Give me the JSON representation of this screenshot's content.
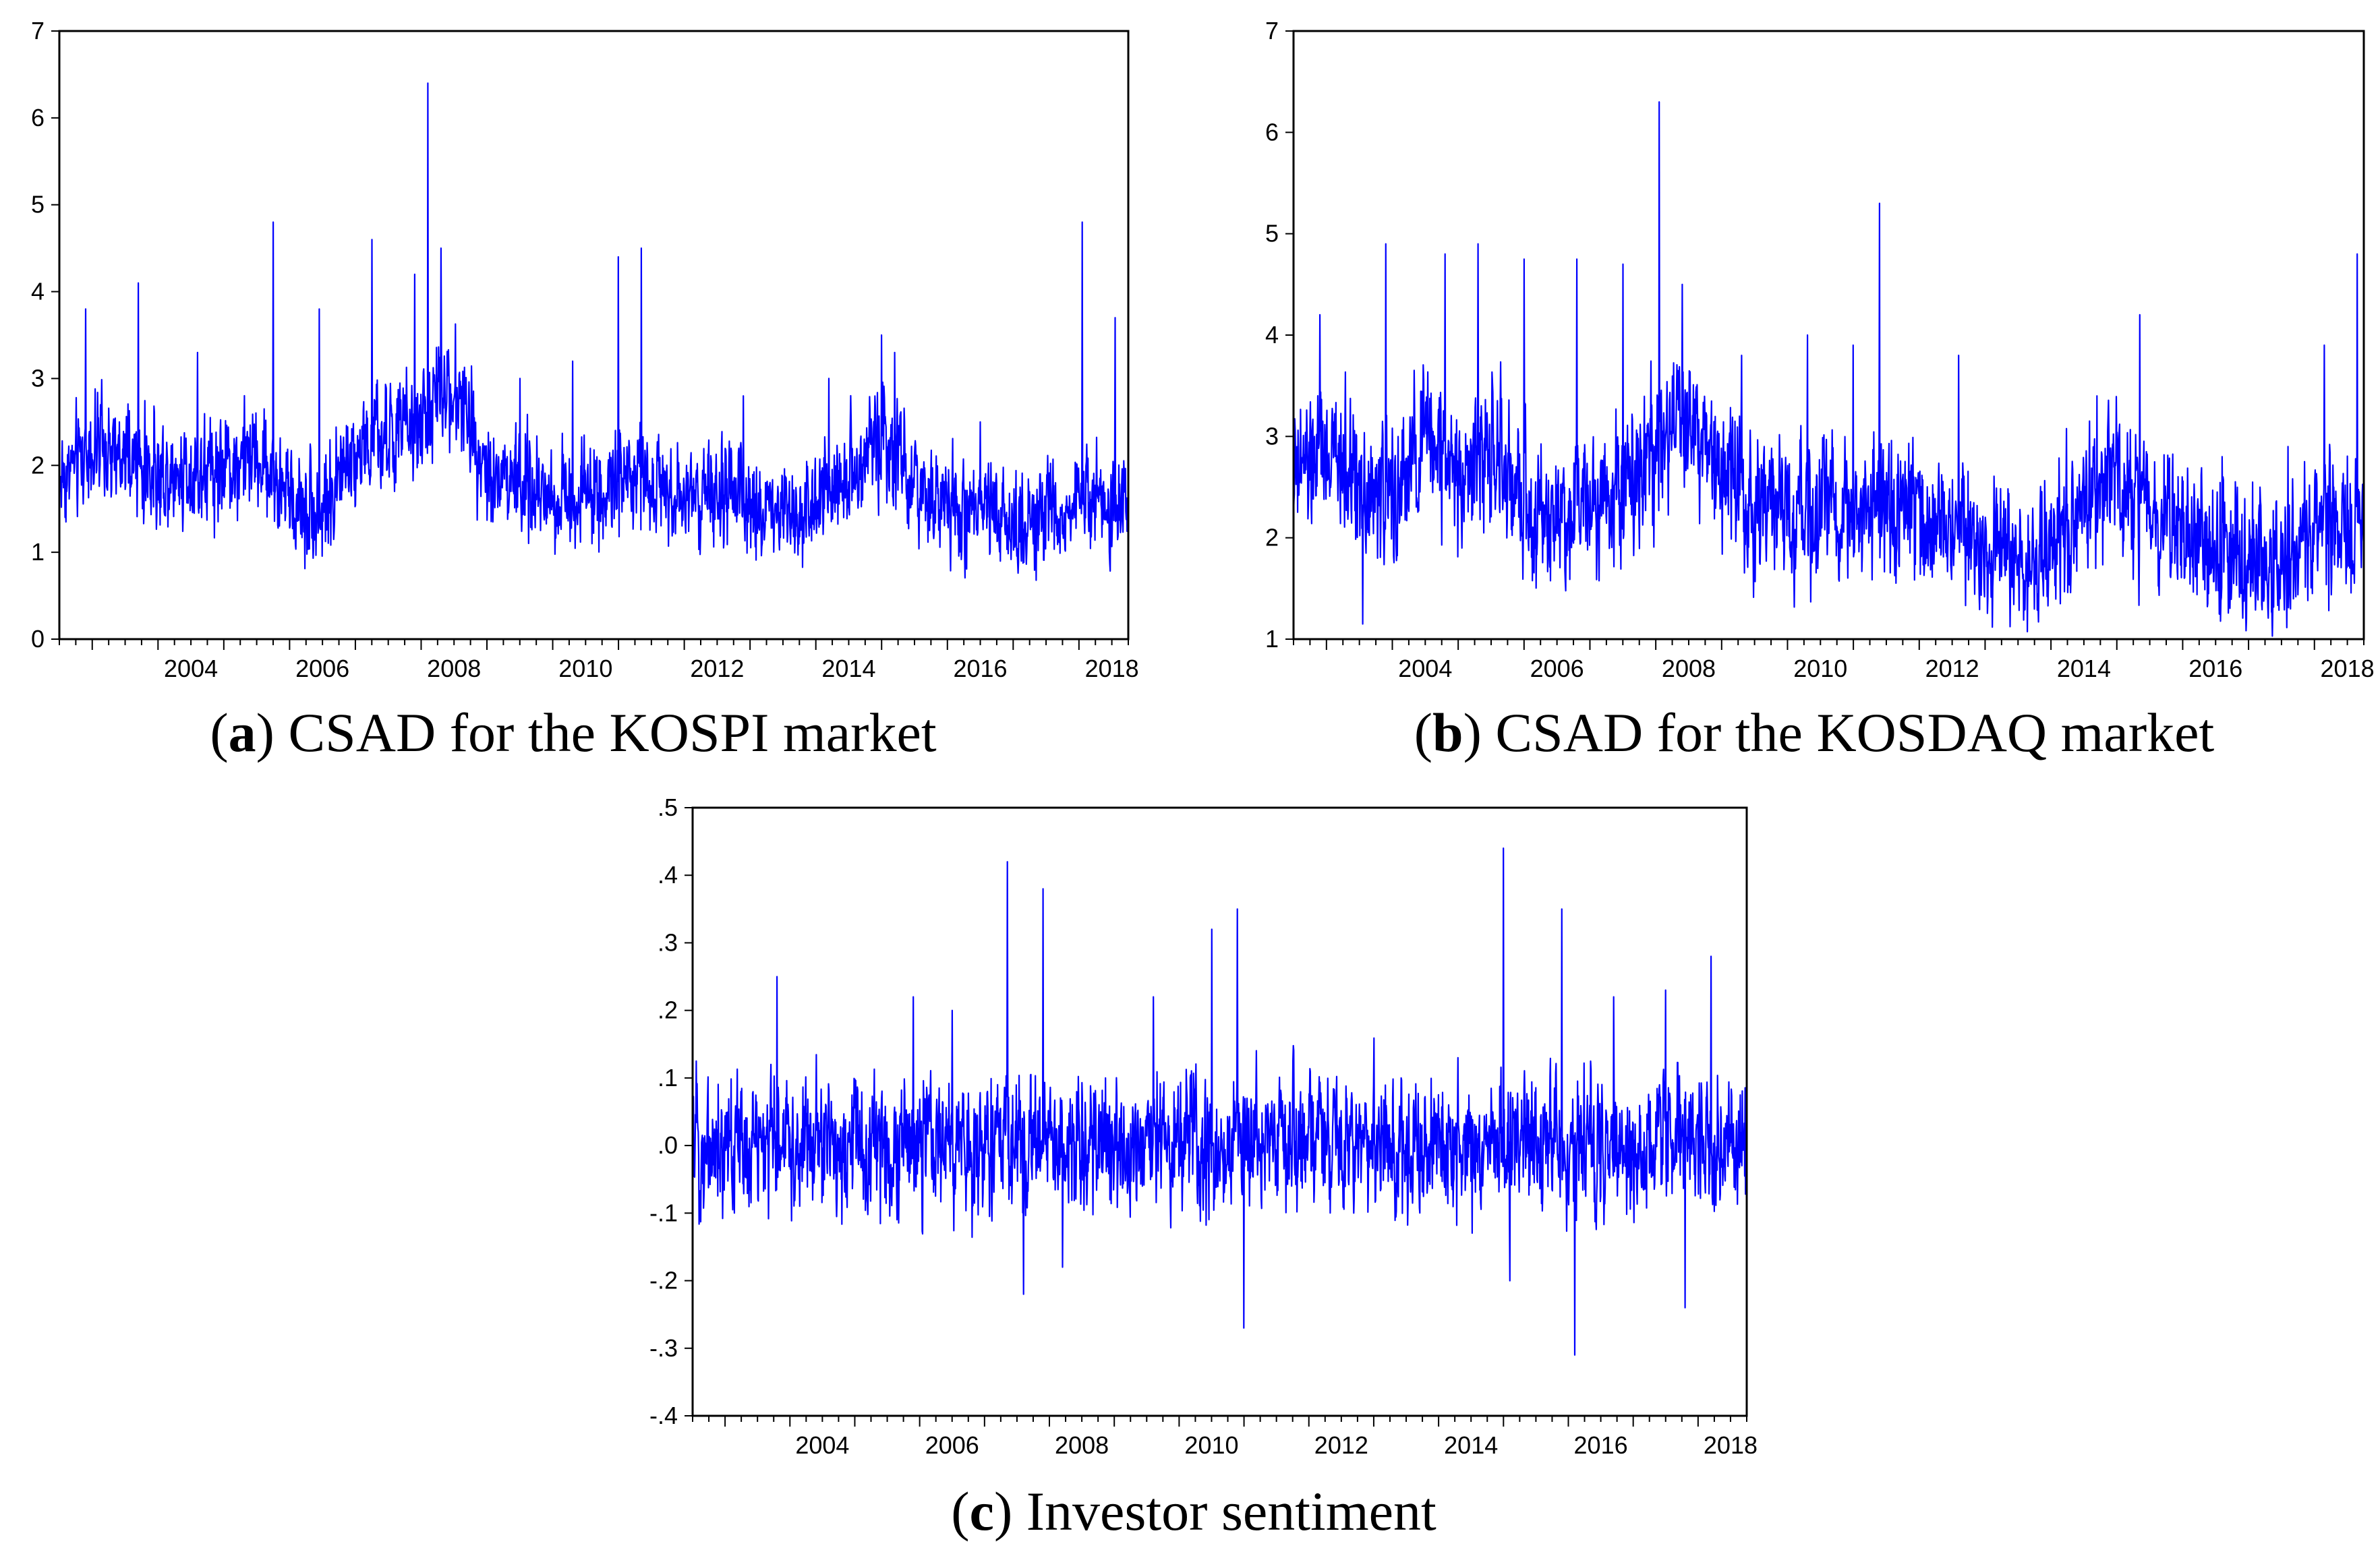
{
  "figure": {
    "line_color": "#0000ff",
    "panels": [
      {
        "id": "a",
        "letter": "a",
        "caption": ") CSAD for the KOSPI market"
      },
      {
        "id": "b",
        "letter": "b",
        "caption": ") CSAD for the KOSDAQ market"
      },
      {
        "id": "c",
        "letter": "c",
        "caption": ") Investor sentiment"
      }
    ]
  },
  "chart_data": [
    {
      "type": "line",
      "title": "(a) CSAD for the KOSPI market",
      "x_start": 2002.5,
      "x_end": 2018.75,
      "x_ticks": [
        "2004",
        "2006",
        "2008",
        "2010",
        "2012",
        "2014",
        "2016",
        "2018"
      ],
      "ylim": [
        0,
        7
      ],
      "y_ticks": [
        "0",
        "1",
        "2",
        "3",
        "4",
        "5",
        "6",
        "7"
      ],
      "noise": 0.28,
      "series": [
        {
          "name": "CSAD KOSPI",
          "x": [
            2002.5,
            2003.0,
            2003.5,
            2004.0,
            2004.5,
            2005.0,
            2005.5,
            2006.0,
            2006.5,
            2007.0,
            2007.5,
            2008.0,
            2008.5,
            2009.0,
            2009.5,
            2010.0,
            2010.5,
            2011.0,
            2011.5,
            2012.0,
            2012.5,
            2013.0,
            2013.5,
            2014.0,
            2014.5,
            2015.0,
            2015.5,
            2016.0,
            2016.5,
            2017.0,
            2017.5,
            2018.0,
            2018.5,
            2018.75
          ],
          "level": [
            1.85,
            2.2,
            2.0,
            1.9,
            1.95,
            2.0,
            2.1,
            1.6,
            1.5,
            2.2,
            2.3,
            2.5,
            2.9,
            2.0,
            1.8,
            1.6,
            1.7,
            1.8,
            1.9,
            1.7,
            1.6,
            1.5,
            1.5,
            1.55,
            1.9,
            2.4,
            1.7,
            1.5,
            1.4,
            1.35,
            1.4,
            1.6,
            1.5,
            1.6
          ],
          "spikes": [
            [
              2002.9,
              3.8
            ],
            [
              2003.7,
              4.1
            ],
            [
              2004.6,
              3.3
            ],
            [
              2005.75,
              4.8
            ],
            [
              2006.45,
              3.8
            ],
            [
              2007.25,
              4.6
            ],
            [
              2007.9,
              4.2
            ],
            [
              2008.1,
              6.4
            ],
            [
              2008.3,
              4.5
            ],
            [
              2009.5,
              3.0
            ],
            [
              2010.3,
              3.2
            ],
            [
              2011.0,
              4.4
            ],
            [
              2011.35,
              4.5
            ],
            [
              2012.9,
              2.8
            ],
            [
              2014.2,
              3.0
            ],
            [
              2015.0,
              3.5
            ],
            [
              2015.2,
              3.3
            ],
            [
              2016.5,
              2.5
            ],
            [
              2018.05,
              4.8
            ],
            [
              2018.55,
              3.7
            ]
          ]
        }
      ]
    },
    {
      "type": "line",
      "title": "(b) CSAD for the KOSDAQ market",
      "x_start": 2002.5,
      "x_end": 2018.75,
      "x_ticks": [
        "2004",
        "2006",
        "2008",
        "2010",
        "2012",
        "2014",
        "2016",
        "2018"
      ],
      "ylim": [
        1,
        7
      ],
      "y_ticks": [
        "1",
        "2",
        "3",
        "4",
        "5",
        "6",
        "7"
      ],
      "noise": 0.32,
      "series": [
        {
          "name": "CSAD KOSDAQ",
          "x": [
            2002.5,
            2003.0,
            2003.5,
            2004.0,
            2004.5,
            2005.0,
            2005.5,
            2006.0,
            2006.5,
            2007.0,
            2007.5,
            2008.0,
            2008.5,
            2009.0,
            2009.5,
            2010.0,
            2010.5,
            2011.0,
            2011.5,
            2012.0,
            2012.5,
            2013.0,
            2013.5,
            2014.0,
            2014.5,
            2015.0,
            2015.5,
            2016.0,
            2016.5,
            2017.0,
            2017.5,
            2018.0,
            2018.5,
            2018.75
          ],
          "level": [
            2.6,
            2.8,
            2.6,
            2.3,
            3.0,
            2.7,
            2.8,
            2.3,
            2.2,
            2.5,
            2.5,
            3.0,
            3.2,
            2.6,
            2.4,
            2.1,
            2.2,
            2.2,
            2.3,
            2.2,
            2.1,
            1.8,
            1.7,
            1.9,
            2.2,
            2.6,
            2.2,
            2.0,
            1.9,
            1.7,
            1.8,
            2.1,
            2.1,
            2.1
          ],
          "spikes": [
            [
              2002.9,
              4.2
            ],
            [
              2003.55,
              1.15
            ],
            [
              2003.9,
              4.9
            ],
            [
              2004.8,
              4.8
            ],
            [
              2005.3,
              4.9
            ],
            [
              2006.0,
              4.75
            ],
            [
              2006.8,
              4.75
            ],
            [
              2007.5,
              4.7
            ],
            [
              2008.05,
              6.3
            ],
            [
              2008.4,
              4.5
            ],
            [
              2009.3,
              3.8
            ],
            [
              2010.3,
              4.0
            ],
            [
              2011.0,
              3.9
            ],
            [
              2011.4,
              5.3
            ],
            [
              2012.6,
              3.8
            ],
            [
              2014.7,
              3.4
            ],
            [
              2015.35,
              4.2
            ],
            [
              2016.6,
              2.8
            ],
            [
              2017.6,
              2.9
            ],
            [
              2018.15,
              3.9
            ],
            [
              2018.65,
              4.8
            ]
          ]
        }
      ]
    },
    {
      "type": "line",
      "title": "(c) Investor sentiment",
      "x_start": 2002.5,
      "x_end": 2018.75,
      "x_ticks": [
        "2004",
        "2006",
        "2008",
        "2010",
        "2012",
        "2014",
        "2016",
        "2018"
      ],
      "ylim": [
        -0.4,
        0.5
      ],
      "y_ticks": [
        "-.4",
        "-.3",
        "-.2",
        "-.1",
        ".0",
        ".1",
        ".2",
        ".3",
        ".4",
        ".5"
      ],
      "noise": 0.045,
      "series": [
        {
          "name": "Investor sentiment",
          "x": [
            2002.5,
            2018.75
          ],
          "level": [
            0.0,
            0.0
          ],
          "spikes": [
            [
              2003.8,
              0.25
            ],
            [
              2005.9,
              0.22
            ],
            [
              2006.5,
              0.2
            ],
            [
              2007.35,
              0.42
            ],
            [
              2007.6,
              -0.22
            ],
            [
              2007.9,
              0.38
            ],
            [
              2008.2,
              -0.18
            ],
            [
              2009.6,
              0.22
            ],
            [
              2010.5,
              0.32
            ],
            [
              2010.9,
              0.35
            ],
            [
              2011.0,
              -0.27
            ],
            [
              2014.3,
              0.13
            ],
            [
              2015.0,
              0.44
            ],
            [
              2015.1,
              -0.2
            ],
            [
              2015.9,
              0.35
            ],
            [
              2016.1,
              -0.31
            ],
            [
              2016.7,
              0.22
            ],
            [
              2017.5,
              0.23
            ],
            [
              2017.8,
              -0.24
            ],
            [
              2018.2,
              0.28
            ]
          ]
        }
      ]
    }
  ]
}
